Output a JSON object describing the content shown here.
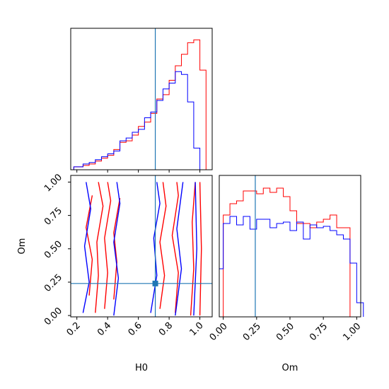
{
  "chart_data": [
    {
      "type": "histogram",
      "panel": "top-left",
      "variable": "H0",
      "x_range": [
        0.16,
        1.08
      ],
      "truth": 0.71,
      "series": [
        {
          "color": "#ff0000",
          "bins_left": [
            0.18,
            0.24,
            0.28,
            0.32,
            0.36,
            0.4,
            0.44,
            0.48,
            0.52,
            0.56,
            0.6,
            0.64,
            0.68,
            0.72,
            0.76,
            0.8,
            0.84,
            0.88,
            0.92,
            0.96,
            1.0
          ],
          "weights": [
            0.02,
            0.03,
            0.04,
            0.06,
            0.08,
            0.1,
            0.14,
            0.19,
            0.2,
            0.24,
            0.3,
            0.33,
            0.39,
            0.49,
            0.52,
            0.62,
            0.72,
            0.8,
            0.88,
            0.9,
            0.69
          ]
        },
        {
          "color": "#0000ff",
          "bins_left": [
            0.18,
            0.24,
            0.28,
            0.32,
            0.36,
            0.4,
            0.44,
            0.48,
            0.52,
            0.56,
            0.6,
            0.64,
            0.68,
            0.72,
            0.76,
            0.8,
            0.84,
            0.88,
            0.92,
            0.96,
            1.0
          ],
          "weights": [
            0.02,
            0.04,
            0.05,
            0.07,
            0.09,
            0.11,
            0.13,
            0.2,
            0.22,
            0.26,
            0.28,
            0.36,
            0.4,
            0.48,
            0.56,
            0.6,
            0.68,
            0.66,
            0.47,
            0.15,
            0.0
          ]
        }
      ]
    },
    {
      "type": "contour",
      "panel": "bottom-left",
      "xlabel": "H0",
      "ylabel": "Om",
      "x_range": [
        0.16,
        1.08
      ],
      "y_range": [
        -0.01,
        1.05
      ],
      "x_ticks": [
        "0.2",
        "0.4",
        "0.6",
        "0.8",
        "1.0"
      ],
      "y_ticks": [
        "0.00",
        "0.25",
        "0.50",
        "0.75",
        "1.00"
      ],
      "truth": {
        "H0": 0.71,
        "Om": 0.24
      },
      "series": [
        {
          "color": "#ff0000",
          "contours": [
            [
              [
                0.32,
                0.02
              ],
              [
                0.34,
                0.3
              ],
              [
                0.33,
                0.55
              ],
              [
                0.37,
                0.82
              ],
              [
                0.34,
                1.0
              ]
            ],
            [
              [
                0.38,
                0.05
              ],
              [
                0.4,
                0.32
              ],
              [
                0.38,
                0.58
              ],
              [
                0.42,
                0.86
              ],
              [
                0.4,
                1.0
              ]
            ],
            [
              [
                0.28,
                0.15
              ],
              [
                0.3,
                0.42
              ],
              [
                0.26,
                0.66
              ],
              [
                0.3,
                0.9
              ]
            ],
            [
              [
                0.44,
                0.12
              ],
              [
                0.46,
                0.4
              ],
              [
                0.44,
                0.62
              ],
              [
                0.48,
                0.88
              ]
            ],
            [
              [
                0.74,
                0.05
              ],
              [
                0.77,
                0.3
              ],
              [
                0.74,
                0.55
              ],
              [
                0.78,
                0.82
              ],
              [
                0.76,
                1.0
              ]
            ],
            [
              [
                0.84,
                0.02
              ],
              [
                0.86,
                0.32
              ],
              [
                0.82,
                0.6
              ],
              [
                0.86,
                0.9
              ],
              [
                0.85,
                1.0
              ]
            ],
            [
              [
                0.94,
                0.0
              ],
              [
                0.96,
                0.35
              ],
              [
                0.95,
                0.7
              ],
              [
                0.97,
                1.0
              ]
            ],
            [
              [
                1.0,
                0.0
              ],
              [
                1.01,
                0.5
              ],
              [
                1.0,
                1.0
              ]
            ]
          ]
        },
        {
          "color": "#0000ff",
          "contours": [
            [
              [
                0.24,
                0.02
              ],
              [
                0.28,
                0.25
              ],
              [
                0.25,
                0.52
              ],
              [
                0.29,
                0.8
              ],
              [
                0.26,
                1.0
              ]
            ],
            [
              [
                0.44,
                0.0
              ],
              [
                0.47,
                0.28
              ],
              [
                0.44,
                0.55
              ],
              [
                0.48,
                0.84
              ],
              [
                0.46,
                1.0
              ]
            ],
            [
              [
                0.68,
                0.02
              ],
              [
                0.72,
                0.3
              ],
              [
                0.7,
                0.58
              ],
              [
                0.74,
                0.84
              ],
              [
                0.72,
                1.0
              ]
            ],
            [
              [
                0.84,
                0.0
              ],
              [
                0.88,
                0.35
              ],
              [
                0.85,
                0.65
              ],
              [
                0.89,
                1.0
              ]
            ],
            [
              [
                0.96,
                0.0
              ],
              [
                0.98,
                0.5
              ],
              [
                0.97,
                1.0
              ]
            ]
          ]
        }
      ]
    },
    {
      "type": "histogram",
      "panel": "bottom-right",
      "variable": "Om",
      "xlabel": "Om",
      "x_range": [
        -0.03,
        1.03
      ],
      "x_ticks": [
        "0.00",
        "0.25",
        "0.50",
        "0.75",
        "1.00"
      ],
      "truth": 0.24,
      "series": [
        {
          "color": "#ff0000",
          "bins_left": [
            0.0,
            0.05,
            0.1,
            0.15,
            0.2,
            0.25,
            0.3,
            0.35,
            0.4,
            0.45,
            0.5,
            0.55,
            0.6,
            0.65,
            0.7,
            0.75,
            0.8,
            0.85,
            0.9,
            0.95
          ],
          "weights": [
            0.72,
            0.8,
            0.82,
            0.89,
            0.89,
            0.87,
            0.91,
            0.88,
            0.91,
            0.85,
            0.75,
            0.66,
            0.66,
            0.63,
            0.67,
            0.69,
            0.72,
            0.63,
            0.63,
            0.0
          ]
        },
        {
          "color": "#0000ff",
          "bins_left": [
            -0.03,
            0.0,
            0.05,
            0.1,
            0.15,
            0.2,
            0.25,
            0.3,
            0.35,
            0.4,
            0.45,
            0.5,
            0.55,
            0.6,
            0.65,
            0.7,
            0.75,
            0.8,
            0.85,
            0.9,
            0.95,
            1.0
          ],
          "weights": [
            0.34,
            0.66,
            0.71,
            0.65,
            0.71,
            0.62,
            0.69,
            0.69,
            0.63,
            0.66,
            0.67,
            0.61,
            0.67,
            0.55,
            0.65,
            0.63,
            0.64,
            0.61,
            0.58,
            0.55,
            0.38,
            0.1
          ]
        }
      ]
    }
  ],
  "truth_color": "#1f77b4"
}
